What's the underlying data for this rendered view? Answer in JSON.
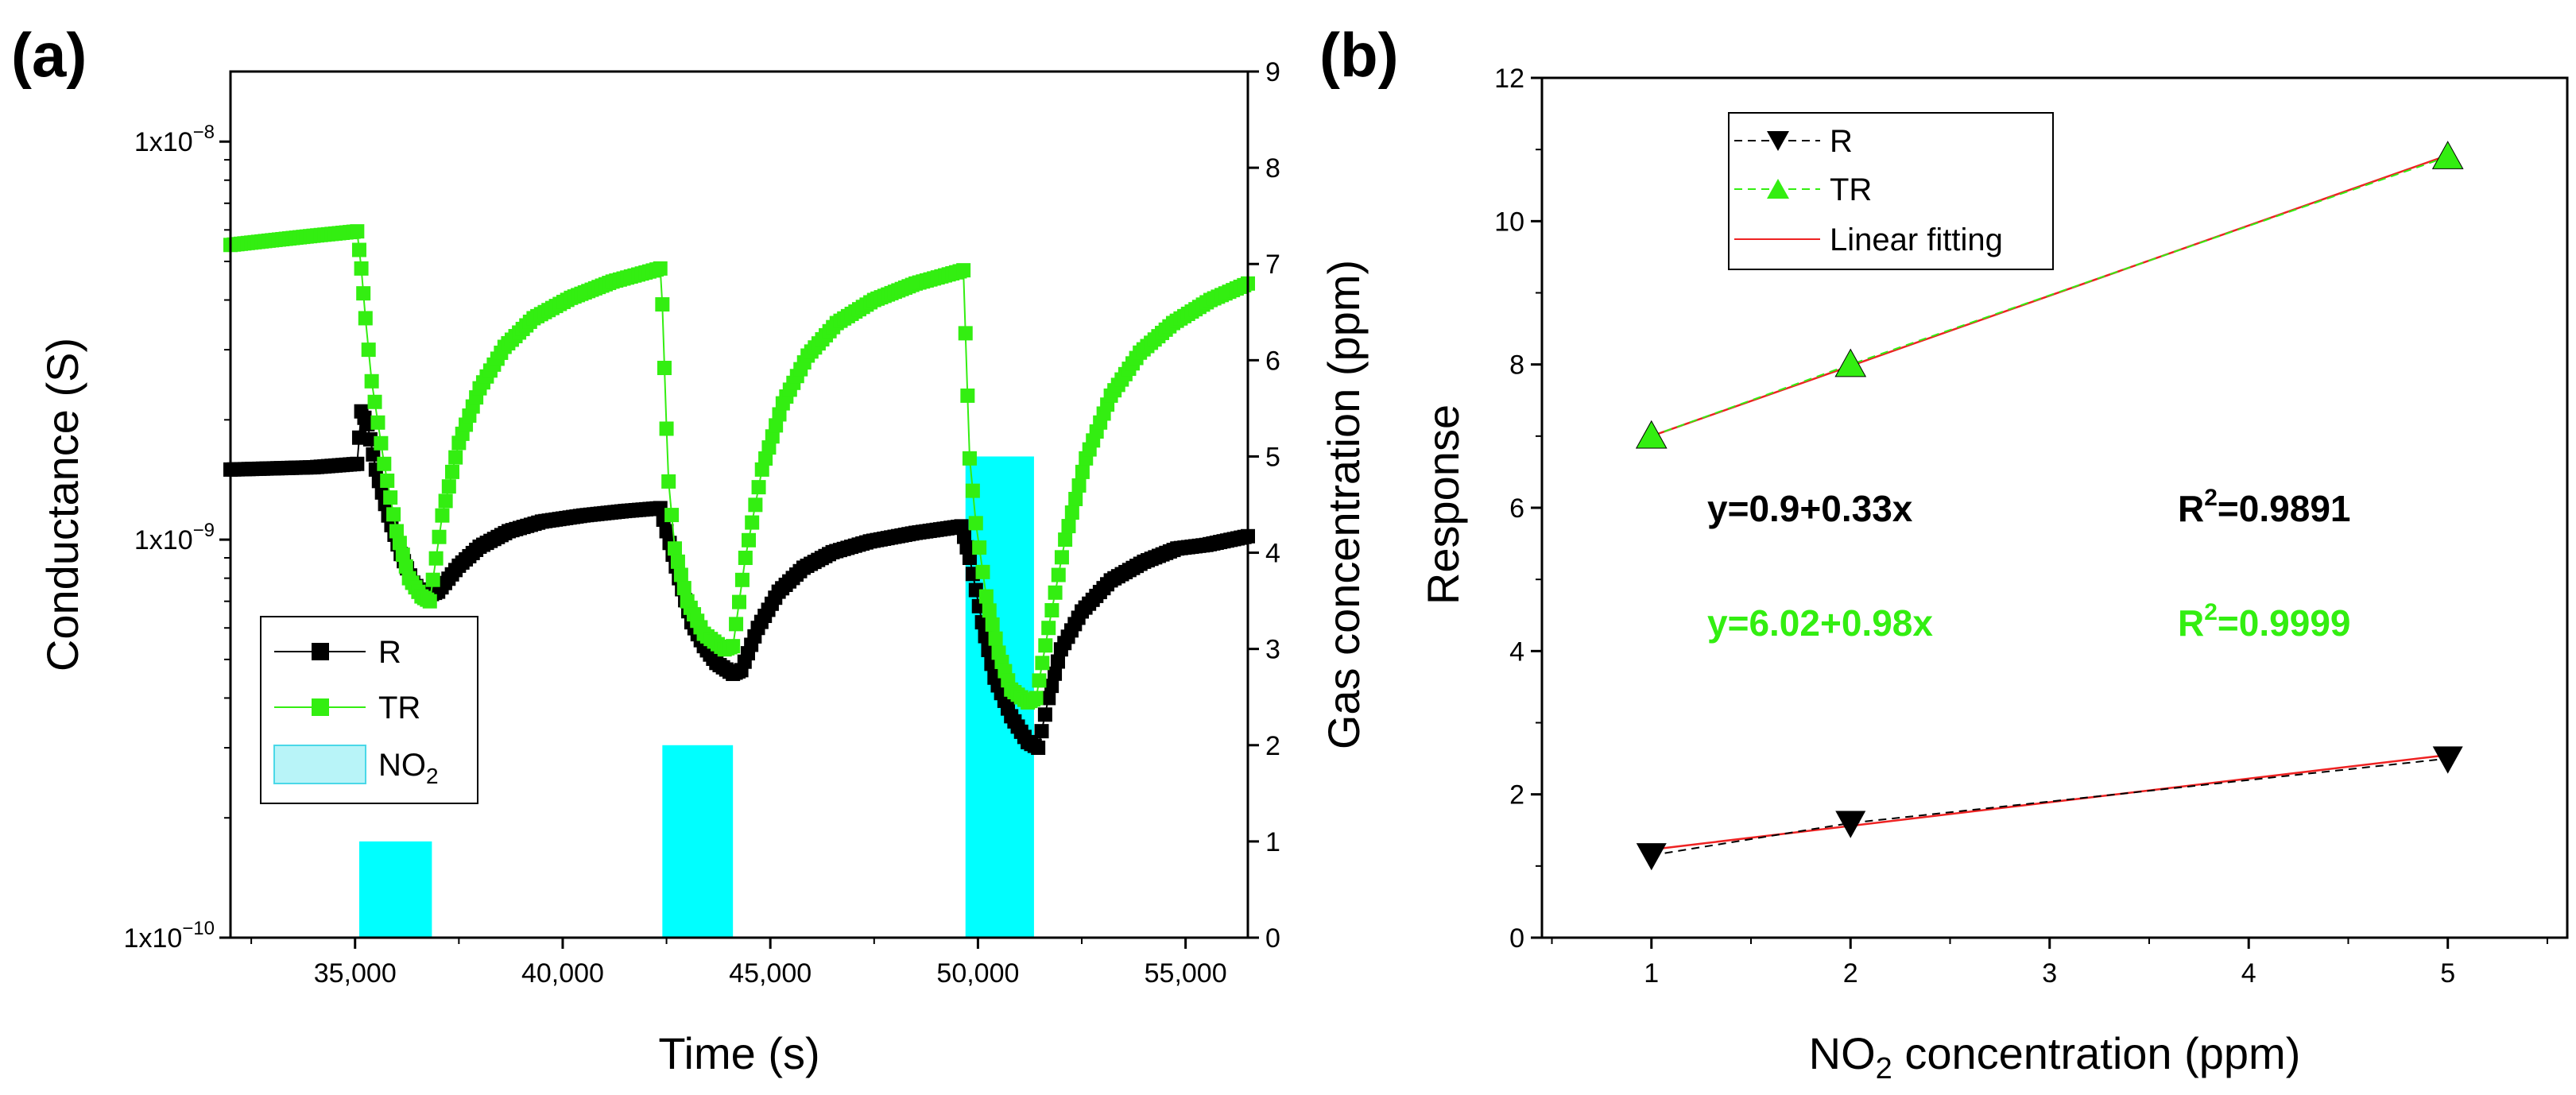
{
  "figure": {
    "panel_a_label": "(a)",
    "panel_b_label": "(b)"
  },
  "chart_data": [
    {
      "id": "a",
      "type": "line",
      "title": "",
      "xlabel": "Time (s)",
      "ylabel": "Conductance (S)",
      "ylabel_right": "Gas concentration (ppm)",
      "xlim": [
        32000,
        56500
      ],
      "ylim_log": [
        1e-10,
        1.5e-08
      ],
      "ylim_right": [
        0,
        9
      ],
      "x_ticks": [
        35000,
        40000,
        45000,
        50000,
        55000
      ],
      "x_tick_labels": [
        "35,000",
        "40,000",
        "45,000",
        "50,000",
        "55,000"
      ],
      "y_ticks": [
        1e-10,
        1e-09,
        1e-08
      ],
      "y_tick_labels": [
        {
          "base": "1x10",
          "exp": "−10"
        },
        {
          "base": "1x10",
          "exp": "−9"
        },
        {
          "base": "1x10",
          "exp": "−8"
        }
      ],
      "y_right_ticks": [
        0,
        1,
        2,
        3,
        4,
        5,
        6,
        7,
        8,
        9
      ],
      "y_right_tick_labels": [
        "0",
        "1",
        "2",
        "3",
        "4",
        "5",
        "6",
        "7",
        "8",
        "9"
      ],
      "legend_position": "bottom-left",
      "series": [
        {
          "name": "R",
          "color": "#000000",
          "marker": "square",
          "points": [
            [
              32000,
              1.5e-09
            ],
            [
              34000,
              1.52e-09
            ],
            [
              35050,
              1.55e-09
            ],
            [
              35150,
              2.1e-09
            ],
            [
              35300,
              1.95e-09
            ],
            [
              35500,
              1.5e-09
            ],
            [
              35800,
              1.15e-09
            ],
            [
              36100,
              9.2e-10
            ],
            [
              36400,
              7.8e-10
            ],
            [
              36700,
              7.2e-10
            ],
            [
              37000,
              7.4e-10
            ],
            [
              37500,
              8.6e-10
            ],
            [
              38000,
              9.6e-10
            ],
            [
              38700,
              1.05e-09
            ],
            [
              39500,
              1.11e-09
            ],
            [
              40500,
              1.15e-09
            ],
            [
              41500,
              1.18e-09
            ],
            [
              42350,
              1.2e-09
            ],
            [
              42500,
              1.05e-09
            ],
            [
              42800,
              8e-10
            ],
            [
              43100,
              6.2e-10
            ],
            [
              43400,
              5.4e-10
            ],
            [
              43700,
              4.9e-10
            ],
            [
              44100,
              4.6e-10
            ],
            [
              44300,
              4.7e-10
            ],
            [
              44700,
              6e-10
            ],
            [
              45200,
              7.4e-10
            ],
            [
              45800,
              8.5e-10
            ],
            [
              46500,
              9.3e-10
            ],
            [
              47400,
              9.9e-10
            ],
            [
              48500,
              1.04e-09
            ],
            [
              49600,
              1.08e-09
            ],
            [
              49800,
              9e-10
            ],
            [
              50100,
              6.2e-10
            ],
            [
              50400,
              4.5e-10
            ],
            [
              50800,
              3.6e-10
            ],
            [
              51200,
              3.1e-10
            ],
            [
              51450,
              3e-10
            ],
            [
              51700,
              4e-10
            ],
            [
              52000,
              5.3e-10
            ],
            [
              52500,
              6.6e-10
            ],
            [
              53200,
              7.9e-10
            ],
            [
              54000,
              8.8e-10
            ],
            [
              54800,
              9.5e-10
            ],
            [
              55500,
              9.7e-10
            ],
            [
              56500,
              1.02e-09
            ]
          ]
        },
        {
          "name": "TR",
          "color": "#33ee11",
          "marker": "square",
          "points": [
            [
              32000,
              5.5e-09
            ],
            [
              33000,
              5.65e-09
            ],
            [
              34000,
              5.8e-09
            ],
            [
              35050,
              5.95e-09
            ],
            [
              35150,
              4.8e-09
            ],
            [
              35250,
              3.6e-09
            ],
            [
              35400,
              2.5e-09
            ],
            [
              35700,
              1.55e-09
            ],
            [
              36000,
              1.05e-09
            ],
            [
              36300,
              8e-10
            ],
            [
              36600,
              7.2e-10
            ],
            [
              36800,
              7e-10
            ],
            [
              37100,
              1.15e-09
            ],
            [
              37500,
              1.75e-09
            ],
            [
              38000,
              2.4e-09
            ],
            [
              38600,
              3.05e-09
            ],
            [
              39300,
              3.6e-09
            ],
            [
              40200,
              4.05e-09
            ],
            [
              41200,
              4.45e-09
            ],
            [
              42350,
              4.8e-09
            ],
            [
              42400,
              3.9e-09
            ],
            [
              42450,
              2.7e-09
            ],
            [
              42500,
              1.9e-09
            ],
            [
              42550,
              1.4e-09
            ],
            [
              42700,
              9.5e-10
            ],
            [
              43000,
              7e-10
            ],
            [
              43400,
              5.8e-10
            ],
            [
              43900,
              5.3e-10
            ],
            [
              44100,
              5.4e-10
            ],
            [
              44400,
              9e-10
            ],
            [
              44800,
              1.5e-09
            ],
            [
              45300,
              2.2e-09
            ],
            [
              45900,
              2.9e-09
            ],
            [
              46600,
              3.5e-09
            ],
            [
              47500,
              4e-09
            ],
            [
              48500,
              4.4e-09
            ],
            [
              49650,
              4.75e-09
            ],
            [
              49700,
              3.3e-09
            ],
            [
              49750,
              2.3e-09
            ],
            [
              49800,
              1.6e-09
            ],
            [
              49950,
              1.1e-09
            ],
            [
              50200,
              7.2e-10
            ],
            [
              50500,
              5.2e-10
            ],
            [
              50800,
              4.2e-10
            ],
            [
              51200,
              3.9e-10
            ],
            [
              51400,
              4e-10
            ],
            [
              51700,
              6e-10
            ],
            [
              52100,
              1e-09
            ],
            [
              52600,
              1.6e-09
            ],
            [
              53200,
              2.3e-09
            ],
            [
              53900,
              2.95e-09
            ],
            [
              54700,
              3.5e-09
            ],
            [
              55600,
              4e-09
            ],
            [
              56500,
              4.4e-09
            ]
          ]
        }
      ],
      "bars": {
        "name": "NO2",
        "legend_label": {
          "base": "NO",
          "sub": "2"
        },
        "color": "#00ffff",
        "pulses": [
          {
            "start": 35100,
            "end": 36850,
            "ppm": 1
          },
          {
            "start": 42400,
            "end": 44100,
            "ppm": 2
          },
          {
            "start": 49700,
            "end": 51350,
            "ppm": 5
          }
        ]
      }
    },
    {
      "id": "b",
      "type": "scatter",
      "title": "",
      "xlabel": {
        "base": "NO",
        "sub": "2",
        "rest": " concentration (ppm)"
      },
      "ylabel": "Response",
      "xlim": [
        0.45,
        5.6
      ],
      "ylim": [
        0,
        12
      ],
      "x_ticks": [
        1,
        2,
        3,
        4,
        5
      ],
      "x_tick_labels": [
        "1",
        "2",
        "3",
        "4",
        "5"
      ],
      "y_ticks": [
        0,
        2,
        4,
        6,
        8,
        10,
        12
      ],
      "y_tick_labels": [
        "0",
        "2",
        "4",
        "6",
        "8",
        "10",
        "12"
      ],
      "legend_position": "top-left",
      "series": [
        {
          "name": "R",
          "color": "#000000",
          "marker": "triangle-down",
          "line": "dashed",
          "points": [
            [
              1,
              1.15
            ],
            [
              2,
              1.6
            ],
            [
              5,
              2.5
            ]
          ]
        },
        {
          "name": "TR",
          "color": "#33ee11",
          "marker": "triangle-up",
          "line": "dashed",
          "points": [
            [
              1,
              7.0
            ],
            [
              2,
              8.0
            ],
            [
              5,
              10.9
            ]
          ]
        }
      ],
      "fits": [
        {
          "name": "Linear fitting",
          "color": "#ee2222",
          "intercept": 0.9,
          "slope": 0.33,
          "for": "R"
        },
        {
          "name": "Linear fitting",
          "color": "#ee2222",
          "intercept": 6.02,
          "slope": 0.98,
          "for": "TR"
        }
      ],
      "annotations": [
        {
          "text": "y=0.9+0.33x",
          "color": "#000000"
        },
        {
          "text": "R",
          "sup": "2",
          "rest": "=0.9891",
          "color": "#000000"
        },
        {
          "text": "y=6.02+0.98x",
          "color": "#33ee11"
        },
        {
          "text": "R",
          "sup": "2",
          "rest": "=0.9999",
          "color": "#33ee11"
        }
      ]
    }
  ]
}
